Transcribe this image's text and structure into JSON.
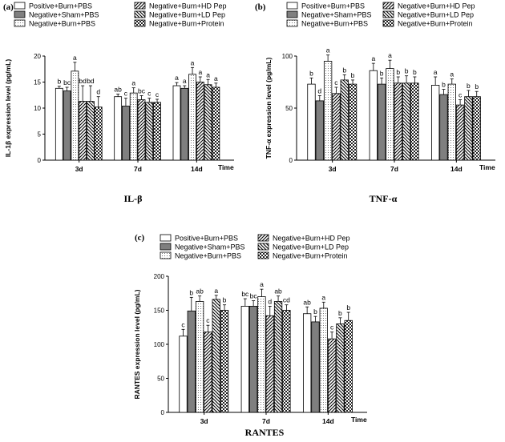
{
  "legend": [
    {
      "label": "Positive+Burn+PBS",
      "pattern": "white"
    },
    {
      "label": "Negative+Sham+PBS",
      "pattern": "gray"
    },
    {
      "label": "Negative+Burn+PBS",
      "pattern": "dots"
    },
    {
      "label": "Negative+Burn+HD Pep",
      "pattern": "diag"
    },
    {
      "label": "Negative+Burn+LD Pep",
      "pattern": "diag2"
    },
    {
      "label": "Negative+Burn+Protein",
      "pattern": "check"
    }
  ],
  "chart_data": [
    {
      "panel": "(a)",
      "type": "bar",
      "title": "IL-β",
      "ylabel": "IL-1β expression level (pg/mL)",
      "xlabel": "Time",
      "ylim": [
        0,
        20
      ],
      "yticks": [
        0,
        5,
        10,
        15,
        20
      ],
      "categories": [
        "3d",
        "7d",
        "14d"
      ],
      "series": [
        {
          "name": "Positive+Burn+PBS",
          "values": [
            13.8,
            12.2,
            14.3
          ],
          "errors": [
            0.4,
            0.5,
            0.6
          ],
          "letters": [
            "b",
            "ab",
            "a"
          ]
        },
        {
          "name": "Negative+Sham+PBS",
          "values": [
            13.3,
            10.4,
            13.8
          ],
          "errors": [
            0.7,
            1.5,
            0.5
          ],
          "letters": [
            "bc",
            "c",
            "a"
          ]
        },
        {
          "name": "Negative+Burn+PBS",
          "values": [
            17.1,
            12.9,
            16.5
          ],
          "errors": [
            1.7,
            1.0,
            1.3
          ],
          "letters": [
            "a",
            "a",
            "a"
          ]
        },
        {
          "name": "Negative+Burn+HD Pep",
          "values": [
            11.3,
            11.6,
            15.0
          ],
          "errors": [
            3.0,
            0.8,
            1.0
          ],
          "letters": [
            "bd",
            "bc",
            "a"
          ]
        },
        {
          "name": "Negative+Burn+LD Pep",
          "values": [
            11.3,
            11.1,
            14.5
          ],
          "errors": [
            3.0,
            0.8,
            1.0
          ],
          "letters": [
            "bd",
            "c",
            "a"
          ]
        },
        {
          "name": "Negative+Burn+Protein",
          "values": [
            10.2,
            11.1,
            14.0
          ],
          "errors": [
            2.0,
            0.6,
            0.8
          ],
          "letters": [
            "d",
            "c",
            "a"
          ]
        }
      ]
    },
    {
      "panel": "(b)",
      "type": "bar",
      "title": "TNF-α",
      "ylabel": "TNF-α expression level (pg/mL)",
      "xlabel": "Time",
      "ylim": [
        0,
        100
      ],
      "yticks": [
        0,
        50,
        100
      ],
      "categories": [
        "3d",
        "7d",
        "14d"
      ],
      "series": [
        {
          "name": "Positive+Burn+PBS",
          "values": [
            73,
            86,
            72
          ],
          "errors": [
            6,
            7,
            8
          ],
          "letters": [
            "b",
            "a",
            "a"
          ]
        },
        {
          "name": "Negative+Sham+PBS",
          "values": [
            57,
            73,
            63
          ],
          "errors": [
            5,
            6,
            5
          ],
          "letters": [
            "d",
            "b",
            "b"
          ]
        },
        {
          "name": "Negative+Burn+PBS",
          "values": [
            95,
            88,
            73
          ],
          "errors": [
            6,
            8,
            5
          ],
          "letters": [
            "a",
            "a",
            "a"
          ]
        },
        {
          "name": "Negative+Burn+HD Pep",
          "values": [
            64,
            74,
            53
          ],
          "errors": [
            6,
            6,
            5
          ],
          "letters": [
            "c",
            "b",
            "c"
          ]
        },
        {
          "name": "Negative+Burn+LD Pep",
          "values": [
            77,
            74,
            61
          ],
          "errors": [
            5,
            7,
            6
          ],
          "letters": [
            "b",
            "b",
            "b"
          ]
        },
        {
          "name": "Negative+Burn+Protein",
          "values": [
            73,
            74,
            61
          ],
          "errors": [
            4,
            6,
            5
          ],
          "letters": [
            "b",
            "b",
            "b"
          ]
        }
      ]
    },
    {
      "panel": "(c)",
      "type": "bar",
      "title": "RANTES",
      "ylabel": "RANTES expression level (pg/mL)",
      "xlabel": "Time",
      "ylim": [
        0,
        200
      ],
      "yticks": [
        0,
        50,
        100,
        150,
        200
      ],
      "categories": [
        "3d",
        "7d",
        "14d"
      ],
      "series": [
        {
          "name": "Positive+Burn+PBS",
          "values": [
            112,
            156,
            145
          ],
          "errors": [
            10,
            11,
            10
          ],
          "letters": [
            "c",
            "bc",
            "ab"
          ]
        },
        {
          "name": "Negative+Sham+PBS",
          "values": [
            149,
            156,
            133
          ],
          "errors": [
            20,
            8,
            8
          ],
          "letters": [
            "b",
            "bc",
            "b"
          ]
        },
        {
          "name": "Negative+Burn+PBS",
          "values": [
            163,
            170,
            153
          ],
          "errors": [
            8,
            11,
            9
          ],
          "letters": [
            "ab",
            "a",
            "a"
          ]
        },
        {
          "name": "Negative+Burn+HD Pep",
          "values": [
            118,
            142,
            108
          ],
          "errors": [
            10,
            14,
            10
          ],
          "letters": [
            "c",
            "d",
            "c"
          ]
        },
        {
          "name": "Negative+Burn+LD Pep",
          "values": [
            166,
            163,
            130
          ],
          "errors": [
            6,
            8,
            9
          ],
          "letters": [
            "a",
            "ab",
            "b"
          ]
        },
        {
          "name": "Negative+Burn+Protein",
          "values": [
            150,
            150,
            135
          ],
          "errors": [
            8,
            8,
            12
          ],
          "letters": [
            "b",
            "cd",
            "b"
          ]
        }
      ]
    }
  ]
}
